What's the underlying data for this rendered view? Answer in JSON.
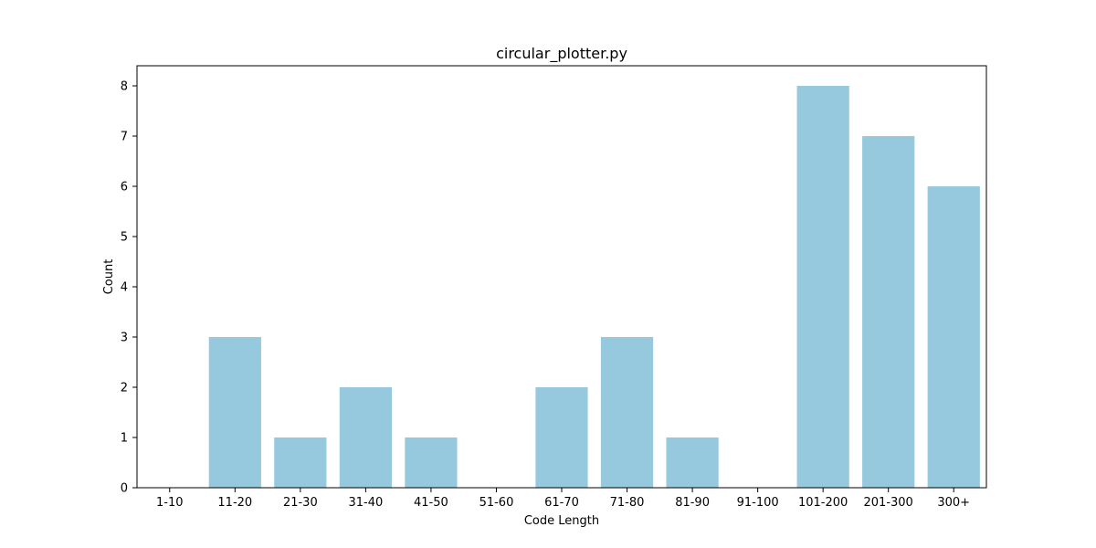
{
  "chart_data": {
    "type": "bar",
    "title": "circular_plotter.py",
    "xlabel": "Code Length",
    "ylabel": "Count",
    "categories": [
      "1-10",
      "11-20",
      "21-30",
      "31-40",
      "41-50",
      "51-60",
      "61-70",
      "71-80",
      "81-90",
      "91-100",
      "101-200",
      "201-300",
      "300+"
    ],
    "values": [
      0,
      3,
      1,
      2,
      1,
      0,
      2,
      3,
      1,
      0,
      8,
      7,
      6
    ],
    "ylim": [
      0,
      8.4
    ],
    "yticks": [
      "0",
      "1",
      "2",
      "3",
      "4",
      "5",
      "6",
      "7",
      "8"
    ],
    "bar_color": "#96c9de",
    "grid": false,
    "legend": "none"
  }
}
